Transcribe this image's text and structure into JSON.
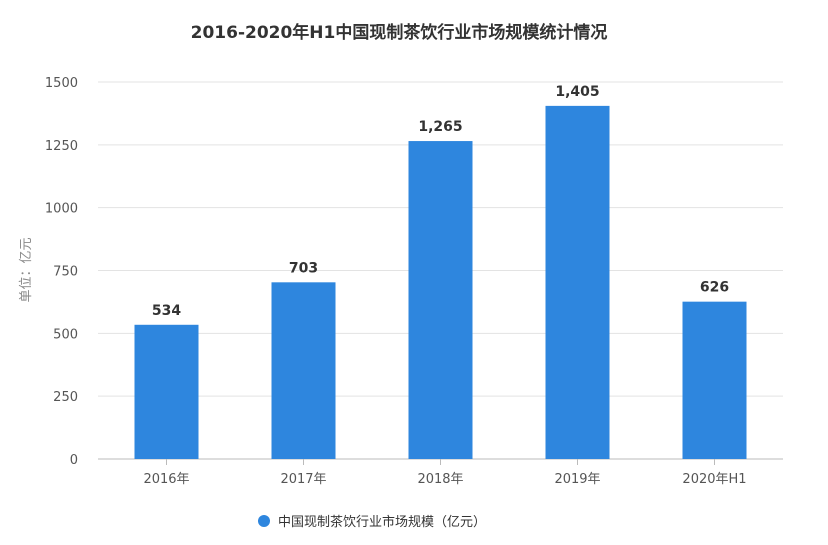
{
  "chart_data": {
    "type": "bar",
    "title": "2016-2020年H1中国现制茶饮行业市场规模统计情况",
    "ylabel": "单位：亿元",
    "xlabel": "",
    "categories": [
      "2016年",
      "2017年",
      "2018年",
      "2019年",
      "2020年H1"
    ],
    "series": [
      {
        "name": "中国现制茶饮行业市场规模（亿元）",
        "values": [
          534,
          703,
          1265,
          1405,
          626
        ],
        "labels": [
          "534",
          "703",
          "1,265",
          "1,405",
          "626"
        ],
        "color": "#2e86de"
      }
    ],
    "ylim": [
      0,
      1500
    ],
    "yticks": [
      0,
      250,
      500,
      750,
      1000,
      1250,
      1500
    ],
    "grid": true,
    "legend": "bottom-center"
  }
}
